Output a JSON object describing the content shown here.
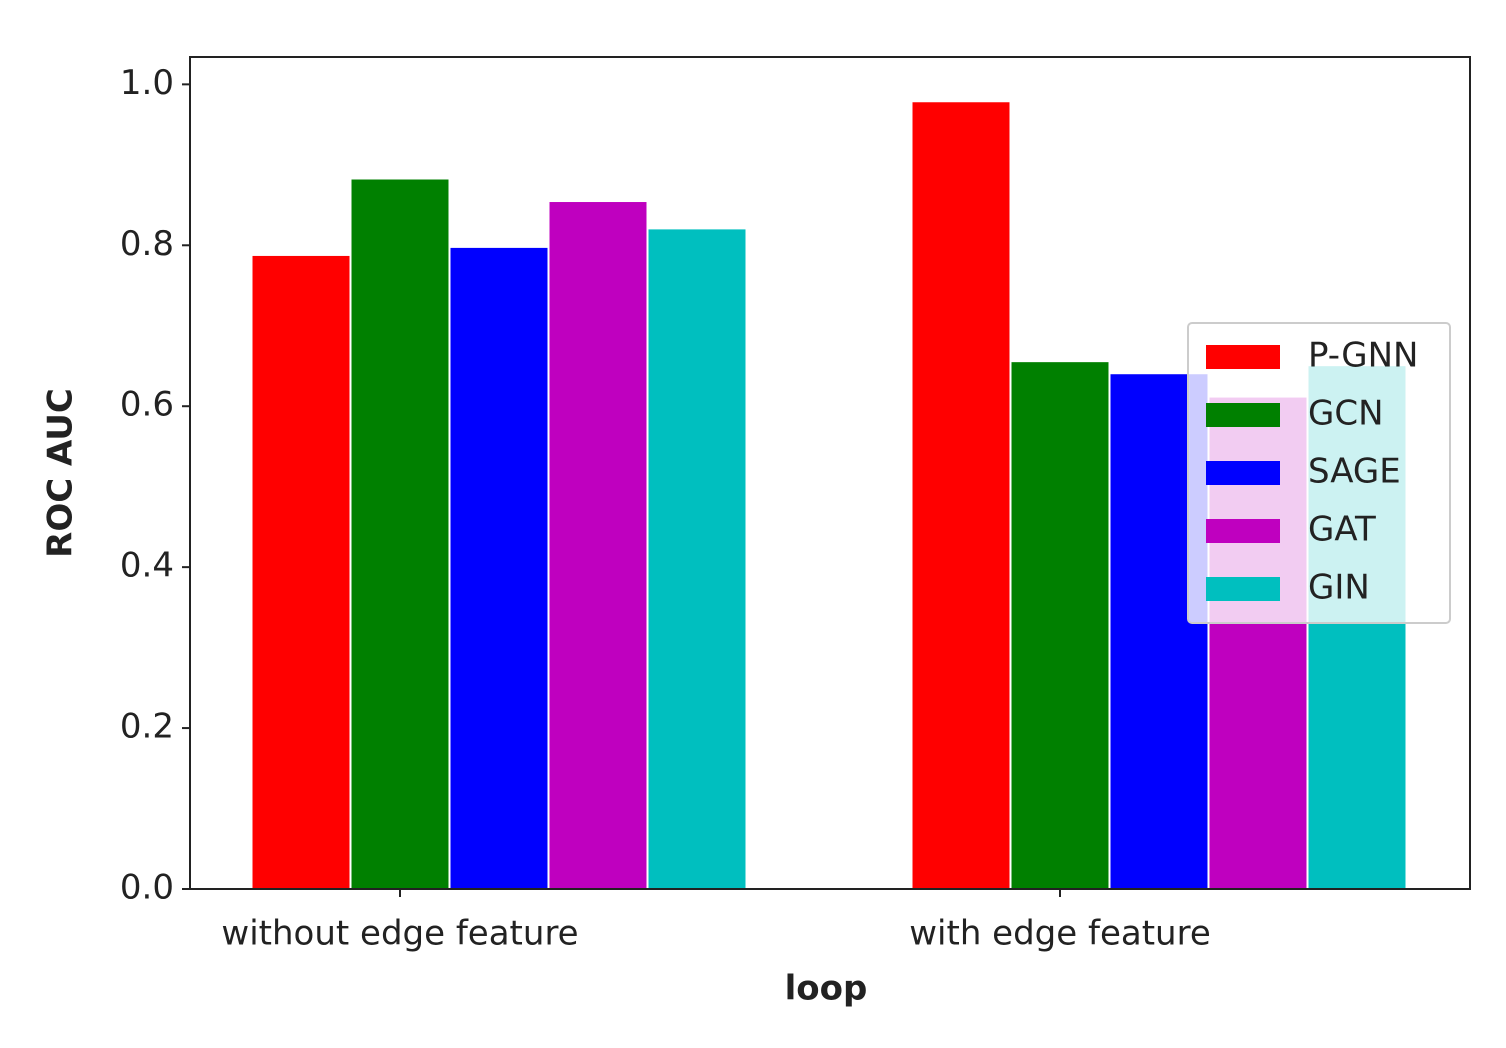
{
  "chart_data": {
    "type": "bar",
    "x_label": "loop",
    "y_label": "ROC AUC",
    "categories": [
      "without edge feature",
      "with edge feature"
    ],
    "series": [
      {
        "name": "P-GNN",
        "color": "#ff0000",
        "values": [
          0.788,
          0.979
        ]
      },
      {
        "name": "GCN",
        "color": "#008000",
        "values": [
          0.883,
          0.656
        ]
      },
      {
        "name": "SAGE",
        "color": "#0000ff",
        "values": [
          0.798,
          0.641
        ]
      },
      {
        "name": "GAT",
        "color": "#bf00bf",
        "values": [
          0.855,
          0.612
        ]
      },
      {
        "name": "GIN",
        "color": "#00bfbf",
        "values": [
          0.821,
          0.651
        ]
      }
    ],
    "ylim": [
      0,
      1.034
    ],
    "yticks": [
      {
        "value": 0,
        "label": "0.0"
      },
      {
        "value": 0.2,
        "label": "0.2"
      },
      {
        "value": 0.4,
        "label": "0.4"
      },
      {
        "value": 0.6,
        "label": "0.6"
      },
      {
        "value": 0.8,
        "label": "0.8"
      },
      {
        "value": 1,
        "label": "1.0"
      }
    ],
    "legend": "center right",
    "grid": false
  }
}
